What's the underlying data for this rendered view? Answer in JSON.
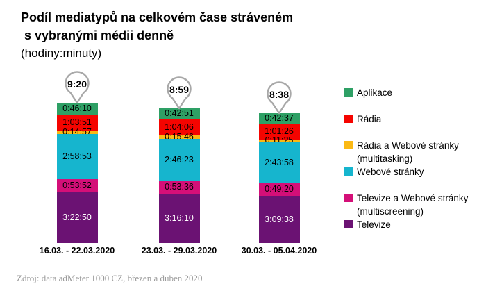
{
  "title": {
    "line1": "Podíl mediatypů na celkovém čase stráveném",
    "line2": " s vybranými médii denně",
    "subtitle": "(hodiny:minuty)"
  },
  "source": "Zdroj: data adMeter 1000 CZ, březen a duben 2020",
  "colors": {
    "bubble_outline": "#a8a8a8",
    "source_text": "#9b9b9b",
    "text": "#000000",
    "background": "#ffffff"
  },
  "chart_data": {
    "type": "bar",
    "stacked": true,
    "orientation": "vertical",
    "value_format": "h:mm:ss",
    "title": "Podíl mediatypů na celkovém čase stráveném s vybranými médii denně",
    "unit_note": "(hodiny:minuty)",
    "categories": [
      "16.03. - 22.03.2020",
      "23.03. - 29.03.2020",
      "30.03. - 05.04.2020"
    ],
    "totals": [
      "9:20",
      "8:59",
      "8:38"
    ],
    "series": [
      {
        "name": "Aplikace",
        "color": "#2ea065",
        "label_color": "#000000",
        "values": [
          "0:46:10",
          "0:42:51",
          "0:42:37"
        ]
      },
      {
        "name": "Rádia",
        "color": "#f50400",
        "label_color": "#000000",
        "values": [
          "1:03:51",
          "1:04:06",
          "1:01:26"
        ]
      },
      {
        "name": "Rádia a Webové stránky (multitasking)",
        "color": "#fbb914",
        "label_color": "#000000",
        "values": [
          "0:14:57",
          "0:15:46",
          "0:11:25"
        ]
      },
      {
        "name": "Webové stránky",
        "color": "#16b5ce",
        "label_color": "#000000",
        "values": [
          "2:58:53",
          "2:46:23",
          "2:43:58"
        ]
      },
      {
        "name": "Televize a Webové stránky (multiscreening)",
        "color": "#d40f78",
        "label_color": "#000000",
        "values": [
          "0:53:52",
          "0:53:36",
          "0:49:20"
        ]
      },
      {
        "name": "Televize",
        "color": "#6b1273",
        "label_color": "#ffffff",
        "values": [
          "3:22:50",
          "3:16:10",
          "3:09:38"
        ]
      }
    ],
    "series_stack_order": "top-to-bottom",
    "legend_position": "right",
    "legend_groups": [
      [
        0
      ],
      [
        1
      ],
      [
        2,
        3
      ],
      [
        4,
        5
      ]
    ],
    "grid": false
  }
}
